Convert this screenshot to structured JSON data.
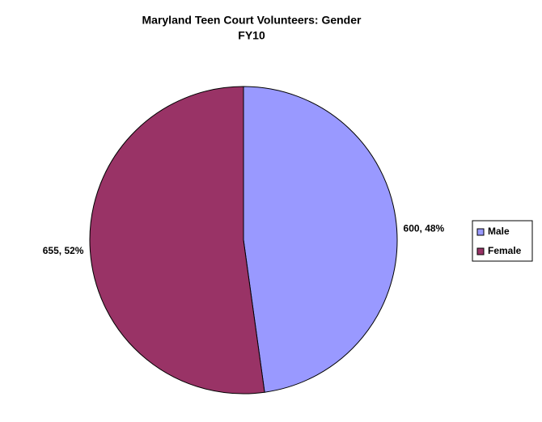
{
  "chart_data": {
    "type": "pie",
    "title": "Maryland Teen Court Volunteers: Gender",
    "subtitle": "FY10",
    "series": [
      {
        "values": [
          600,
          655
        ],
        "value_labels": [
          "600, 48%",
          "655, 52%"
        ]
      }
    ],
    "categories": [
      "Male",
      "Female"
    ],
    "colors": [
      "#9999ff",
      "#993366"
    ],
    "legend": "right"
  }
}
